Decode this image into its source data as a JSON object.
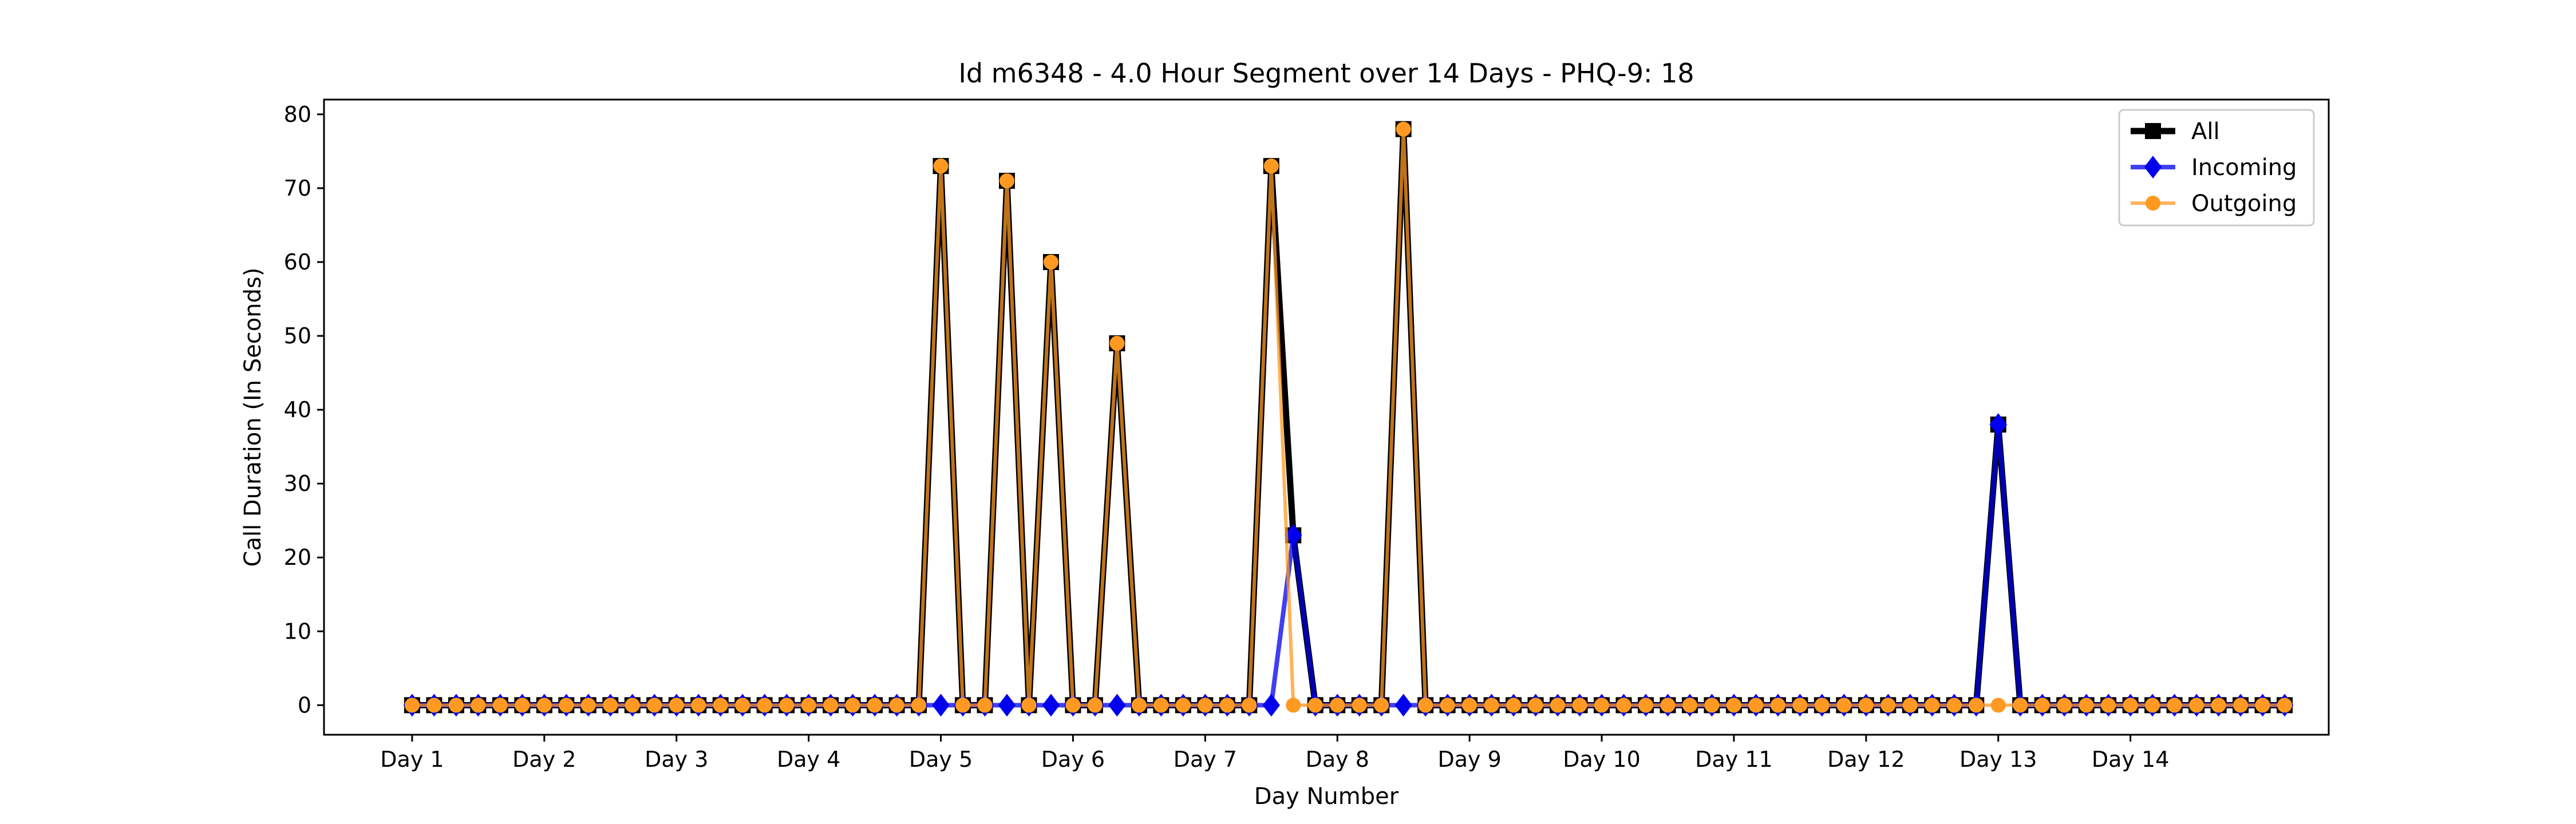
{
  "chart_data": {
    "type": "line",
    "title": "Id m6348 - 4.0 Hour Segment over 14 Days - PHQ-9: 18",
    "xlabel": "Day Number",
    "ylabel": "Call Duration (In Seconds)",
    "ylim": [
      -4,
      82
    ],
    "yticks": [
      0,
      10,
      20,
      30,
      40,
      50,
      60,
      70,
      80
    ],
    "x_range": [
      -4,
      87
    ],
    "xtick_positions": [
      0,
      6,
      12,
      18,
      24,
      30,
      36,
      42,
      48,
      54,
      60,
      66,
      72,
      78
    ],
    "xtick_labels": [
      "Day 1",
      "Day 2",
      "Day 3",
      "Day 4",
      "Day 5",
      "Day 6",
      "Day 7",
      "Day 8",
      "Day 9",
      "Day 10",
      "Day 11",
      "Day 12",
      "Day 13",
      "Day 14"
    ],
    "legend_position": "top-right",
    "grid": false,
    "series": [
      {
        "name": "All",
        "color": "#000000",
        "marker": "square",
        "values": [
          0,
          0,
          0,
          0,
          0,
          0,
          0,
          0,
          0,
          0,
          0,
          0,
          0,
          0,
          0,
          0,
          0,
          0,
          0,
          0,
          0,
          0,
          0,
          0,
          73,
          0,
          0,
          71,
          0,
          60,
          0,
          0,
          49,
          0,
          0,
          0,
          0,
          0,
          0,
          73,
          23,
          0,
          0,
          0,
          0,
          78,
          0,
          0,
          0,
          0,
          0,
          0,
          0,
          0,
          0,
          0,
          0,
          0,
          0,
          0,
          0,
          0,
          0,
          0,
          0,
          0,
          0,
          0,
          0,
          0,
          0,
          0,
          38,
          0,
          0,
          0,
          0,
          0,
          0,
          0,
          0,
          0,
          0,
          0,
          0,
          0
        ]
      },
      {
        "name": "Incoming",
        "color": "#0000ee",
        "marker": "diamond",
        "values": [
          0,
          0,
          0,
          0,
          0,
          0,
          0,
          0,
          0,
          0,
          0,
          0,
          0,
          0,
          0,
          0,
          0,
          0,
          0,
          0,
          0,
          0,
          0,
          0,
          0,
          0,
          0,
          0,
          0,
          0,
          0,
          0,
          0,
          0,
          0,
          0,
          0,
          0,
          0,
          0,
          23,
          0,
          0,
          0,
          0,
          0,
          0,
          0,
          0,
          0,
          0,
          0,
          0,
          0,
          0,
          0,
          0,
          0,
          0,
          0,
          0,
          0,
          0,
          0,
          0,
          0,
          0,
          0,
          0,
          0,
          0,
          0,
          38,
          0,
          0,
          0,
          0,
          0,
          0,
          0,
          0,
          0,
          0,
          0,
          0,
          0
        ]
      },
      {
        "name": "Outgoing",
        "color": "#ff9922",
        "marker": "circle",
        "values": [
          0,
          0,
          0,
          0,
          0,
          0,
          0,
          0,
          0,
          0,
          0,
          0,
          0,
          0,
          0,
          0,
          0,
          0,
          0,
          0,
          0,
          0,
          0,
          0,
          73,
          0,
          0,
          71,
          0,
          60,
          0,
          0,
          49,
          0,
          0,
          0,
          0,
          0,
          0,
          73,
          0,
          0,
          0,
          0,
          0,
          78,
          0,
          0,
          0,
          0,
          0,
          0,
          0,
          0,
          0,
          0,
          0,
          0,
          0,
          0,
          0,
          0,
          0,
          0,
          0,
          0,
          0,
          0,
          0,
          0,
          0,
          0,
          0,
          0,
          0,
          0,
          0,
          0,
          0,
          0,
          0,
          0,
          0,
          0,
          0,
          0
        ]
      }
    ]
  }
}
